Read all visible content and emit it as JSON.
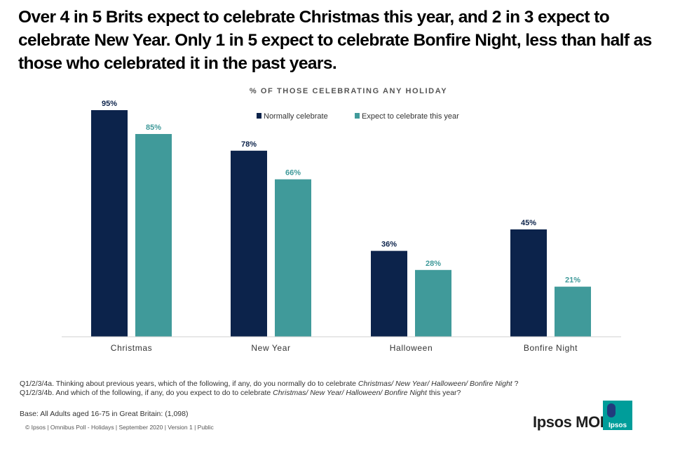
{
  "headline": {
    "line1": "Over 4 in 5 Brits expect to celebrate Christmas this year, and  2 in 3 expect to",
    "line2": "celebrate New Year. Only 1 in 5 expect to celebrate Bonfire Night, less than half as",
    "line3": "those who celebrated it in the past years."
  },
  "chart_data": {
    "type": "bar",
    "title": "% OF THOSE CELEBRATING ANY HOLIDAY",
    "categories": [
      "Christmas",
      "New Year",
      "Halloween",
      "Bonfire Night"
    ],
    "series": [
      {
        "name": "Normally celebrate",
        "values": [
          95,
          78,
          36,
          45
        ],
        "labels": [
          "95%",
          "78%",
          "36%",
          "45%"
        ],
        "color": "#0c234b"
      },
      {
        "name": "Expect to celebrate this year",
        "values": [
          85,
          66,
          28,
          21
        ],
        "labels": [
          "85%",
          "66%",
          "28%",
          "21%"
        ],
        "color": "#409a9a"
      }
    ],
    "ylim": [
      0,
      100
    ],
    "xlabel": "",
    "ylabel": "",
    "legend": "top-right",
    "grid": false
  },
  "notes": {
    "q1_prefix": "Q1/2/3/4a. Thinking about previous years, which of the following, if any, do you normally do to celebrate ",
    "q1_italic": "Christmas/ New Year/ Halloween/ Bonfire Night",
    "q1_suffix": " ?",
    "q2_prefix": "Q1/2/3/4b. And which of the following, if any, do you expect to do to celebrate ",
    "q2_italic": "Christmas/ New Year/ Halloween/ Bonfire Night",
    "q2_suffix": " this year?",
    "base": "Base: All Adults aged 16-75 in Great Britain: (1,098)",
    "footer": "© Ipsos | Omnibus Poll - Holidays  | September 2020 | Version 1 | Public"
  },
  "brand": {
    "name": "Ipsos MORI",
    "logo_text": "Ipsos",
    "colors": {
      "logo_bg": "#009d9a",
      "logo_dark": "#213b7d"
    }
  }
}
